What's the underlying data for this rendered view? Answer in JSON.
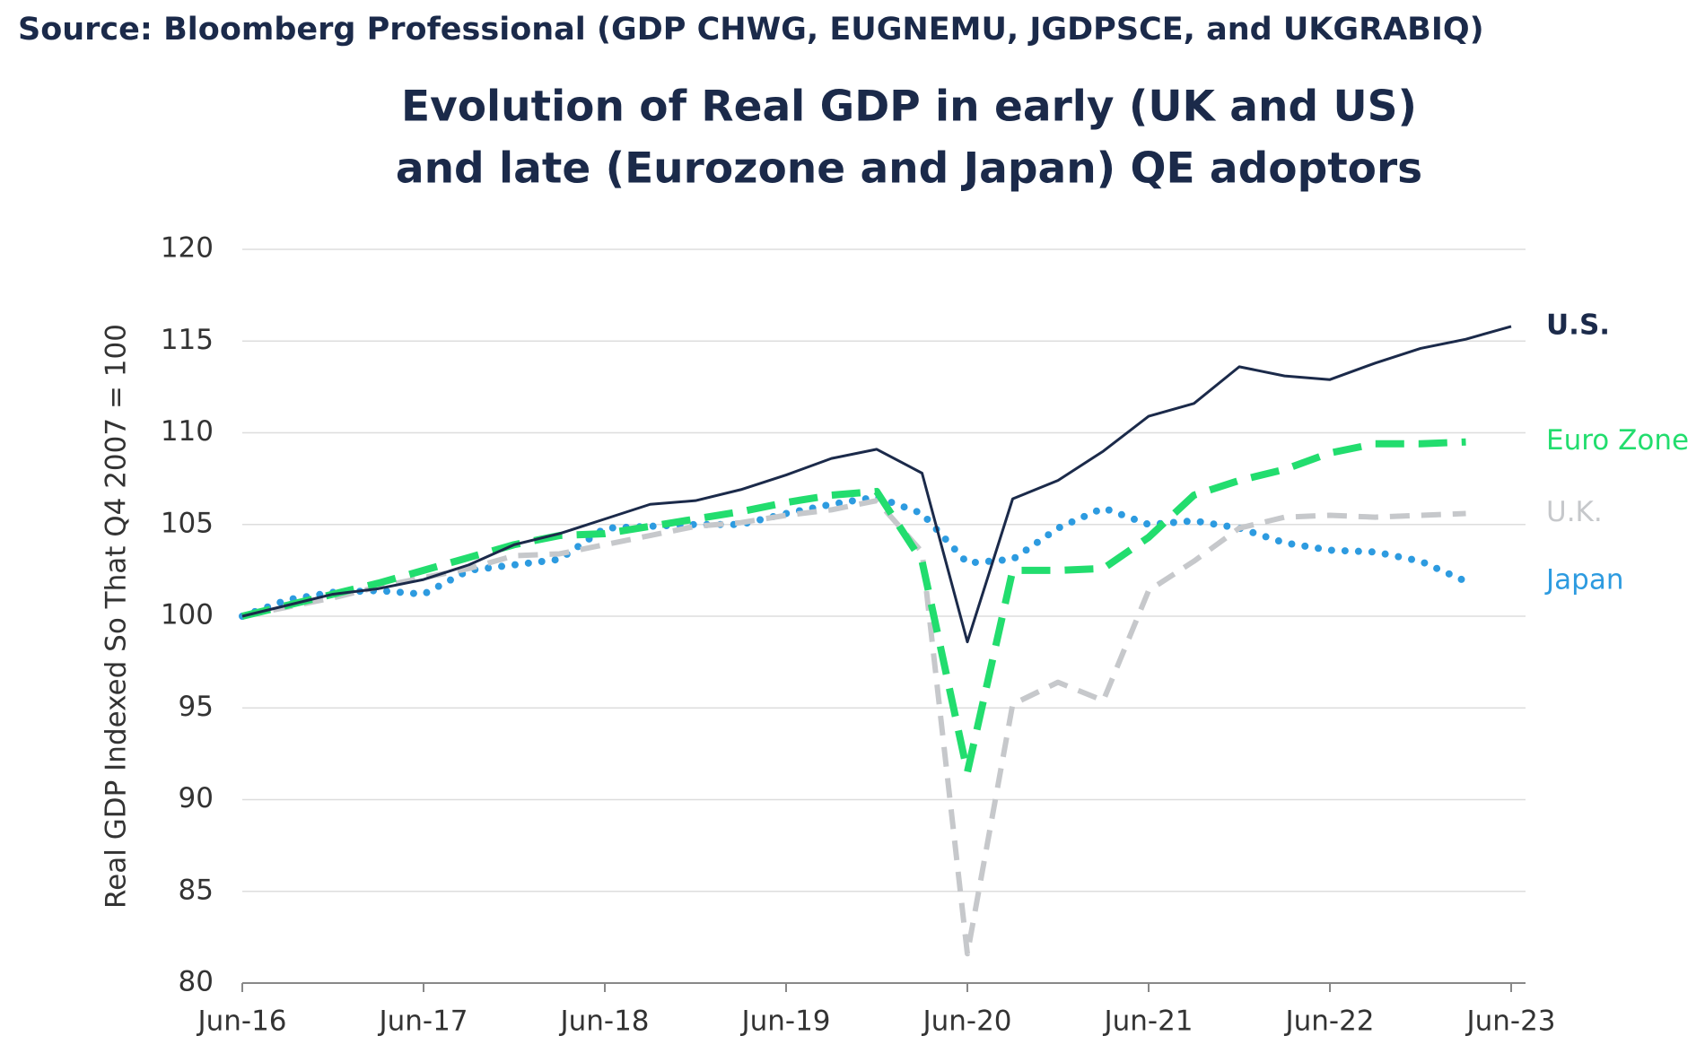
{
  "source": "Source: Bloomberg Professional (GDP CHWG, EUGNEMU, JGDPSCE, and UKGRABIQ)",
  "chart_data": {
    "type": "line",
    "title": [
      "Evolution of Real GDP in early (UK and US)",
      "and late (Eurozone and Japan) QE adoptors"
    ],
    "y_label": "Real GDP Indexed So That Q4 2007 = 100",
    "categories": [
      "Jun-16",
      null,
      null,
      null,
      "Jun-17",
      null,
      null,
      null,
      "Jun-18",
      null,
      null,
      null,
      "Jun-19",
      null,
      null,
      null,
      "Jun-20",
      null,
      null,
      null,
      "Jun-21",
      null,
      null,
      null,
      "Jun-22",
      null,
      null,
      null,
      "Jun-23"
    ],
    "ylim": [
      80,
      120
    ],
    "yticks": [
      80,
      85,
      90,
      95,
      100,
      105,
      110,
      115,
      120
    ],
    "grid": true,
    "series": [
      {
        "name": "U.S.",
        "color": "#1b2a4a",
        "style": "solid",
        "values": [
          100,
          100.6,
          101.2,
          101.5,
          102.0,
          102.8,
          103.9,
          104.5,
          105.3,
          106.1,
          106.3,
          106.9,
          107.7,
          108.6,
          109.1,
          107.8,
          98.6,
          106.4,
          107.4,
          109.0,
          110.9,
          111.6,
          113.6,
          113.1,
          112.9,
          113.8,
          114.6,
          115.1,
          115.8
        ]
      },
      {
        "name": "Euro Zone",
        "color": "#22dd6e",
        "style": "dashed",
        "values": [
          100,
          100.6,
          101.2,
          101.8,
          102.5,
          103.2,
          103.9,
          104.4,
          104.5,
          104.9,
          105.3,
          105.7,
          106.2,
          106.6,
          106.8,
          103.0,
          91.5,
          102.5,
          102.5,
          102.6,
          104.3,
          106.6,
          107.4,
          108.0,
          108.9,
          109.4,
          109.4,
          109.5,
          null
        ]
      },
      {
        "name": "U.K.",
        "color": "#c6c8cb",
        "style": "dashed-thin",
        "values": [
          100,
          100.5,
          101.0,
          101.6,
          102.1,
          102.6,
          103.3,
          103.4,
          103.9,
          104.4,
          104.9,
          105.1,
          105.5,
          105.8,
          106.3,
          103.5,
          81.6,
          95.2,
          96.4,
          95.4,
          101.4,
          103.0,
          104.8,
          105.4,
          105.5,
          105.4,
          105.5,
          105.6,
          null
        ]
      },
      {
        "name": "Japan",
        "color": "#2d9be0",
        "style": "dotted",
        "values": [
          100,
          100.9,
          101.3,
          101.4,
          101.2,
          102.5,
          102.8,
          103.1,
          104.8,
          104.9,
          105.0,
          105.0,
          105.6,
          106.1,
          106.5,
          105.6,
          102.9,
          103.1,
          104.8,
          105.9,
          105.0,
          105.2,
          104.8,
          104.0,
          103.6,
          103.5,
          103.0,
          101.9,
          null
        ]
      }
    ]
  }
}
